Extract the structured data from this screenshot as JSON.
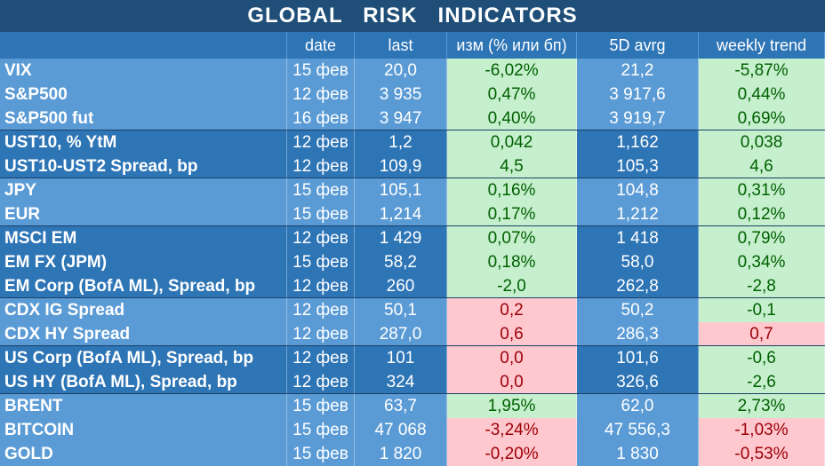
{
  "title": "GLOBAL   RISK   INDICATORS",
  "headers": [
    "",
    "date",
    "last",
    "изм (% или бп)",
    "5D avrg",
    "weekly trend"
  ],
  "colors": {
    "title_bg": "#1f4e78",
    "header_bg": "#2e75b6",
    "group_light": "#5b9bd5",
    "group_dark": "#2e75b6",
    "positive_bg": "#c6efce",
    "positive_text": "#006100",
    "negative_bg": "#ffc7ce",
    "negative_text": "#9c0006"
  },
  "groups": [
    {
      "shade": "light",
      "rows": [
        {
          "name": "VIX",
          "date": "15 фев",
          "last": "20,0",
          "chg": "-6,02%",
          "chg_tone": "positive",
          "avg": "21,2",
          "wk": "-5,87%",
          "wk_tone": "positive"
        },
        {
          "name": "S&P500",
          "date": "12 фев",
          "last": "3 935",
          "chg": "0,47%",
          "chg_tone": "positive",
          "avg": "3 917,6",
          "wk": "0,44%",
          "wk_tone": "positive"
        },
        {
          "name": "S&P500 fut",
          "date": "16 фев",
          "last": "3 947",
          "chg": "0,40%",
          "chg_tone": "positive",
          "avg": "3 919,7",
          "wk": "0,69%",
          "wk_tone": "positive"
        }
      ]
    },
    {
      "shade": "dark",
      "rows": [
        {
          "name": "UST10, % YtM",
          "date": "12 фев",
          "last": "1,2",
          "chg": "0,042",
          "chg_tone": "positive",
          "avg": "1,162",
          "wk": "0,038",
          "wk_tone": "positive"
        },
        {
          "name": "UST10-UST2 Spread, bp",
          "date": "12 фев",
          "last": "109,9",
          "chg": "4,5",
          "chg_tone": "positive",
          "avg": "105,3",
          "wk": "4,6",
          "wk_tone": "positive"
        }
      ]
    },
    {
      "shade": "light",
      "rows": [
        {
          "name": "JPY",
          "date": "15 фев",
          "last": "105,1",
          "chg": "0,16%",
          "chg_tone": "positive",
          "avg": "104,8",
          "wk": "0,31%",
          "wk_tone": "positive"
        },
        {
          "name": "EUR",
          "date": "15 фев",
          "last": "1,214",
          "chg": "0,17%",
          "chg_tone": "positive",
          "avg": "1,212",
          "wk": "0,12%",
          "wk_tone": "positive"
        }
      ]
    },
    {
      "shade": "dark",
      "rows": [
        {
          "name": "MSCI EM",
          "date": "12 фев",
          "last": "1 429",
          "chg": "0,07%",
          "chg_tone": "positive",
          "avg": "1 418",
          "wk": "0,79%",
          "wk_tone": "positive"
        },
        {
          "name": "EM FX (JPM)",
          "date": "15 фев",
          "last": "58,2",
          "chg": "0,18%",
          "chg_tone": "positive",
          "avg": "58,0",
          "wk": "0,34%",
          "wk_tone": "positive"
        },
        {
          "name": "EM Corp (BofA ML), Spread, bp",
          "date": "12 фев",
          "last": "260",
          "chg": "-2,0",
          "chg_tone": "positive",
          "avg": "262,8",
          "wk": "-2,8",
          "wk_tone": "positive"
        }
      ]
    },
    {
      "shade": "light",
      "rows": [
        {
          "name": "CDX IG Spread",
          "date": "12 фев",
          "last": "50,1",
          "chg": "0,2",
          "chg_tone": "negative",
          "avg": "50,2",
          "wk": "-0,1",
          "wk_tone": "positive"
        },
        {
          "name": "CDX HY Spread",
          "date": "12 фев",
          "last": "287,0",
          "chg": "0,6",
          "chg_tone": "negative",
          "avg": "286,3",
          "wk": "0,7",
          "wk_tone": "negative"
        }
      ]
    },
    {
      "shade": "dark",
      "rows": [
        {
          "name": "US Corp (BofA ML), Spread, bp",
          "date": "12 фев",
          "last": "101",
          "chg": "0,0",
          "chg_tone": "negative",
          "avg": "101,6",
          "wk": "-0,6",
          "wk_tone": "positive"
        },
        {
          "name": "US HY (BofA ML), Spread, bp",
          "date": "12 фев",
          "last": "324",
          "chg": "0,0",
          "chg_tone": "negative",
          "avg": "326,6",
          "wk": "-2,6",
          "wk_tone": "positive"
        }
      ]
    },
    {
      "shade": "light",
      "rows": [
        {
          "name": "BRENT",
          "date": "15 фев",
          "last": "63,7",
          "chg": "1,95%",
          "chg_tone": "positive",
          "avg": "62,0",
          "wk": "2,73%",
          "wk_tone": "positive"
        },
        {
          "name": "BITCOIN",
          "date": "15 фев",
          "last": "47 068",
          "chg": "-3,24%",
          "chg_tone": "negative",
          "avg": "47 556,3",
          "wk": "-1,03%",
          "wk_tone": "negative"
        },
        {
          "name": "GOLD",
          "date": "15 фев",
          "last": "1 820",
          "chg": "-0,20%",
          "chg_tone": "negative",
          "avg": "1 830",
          "wk": "-0,53%",
          "wk_tone": "negative"
        }
      ]
    }
  ]
}
